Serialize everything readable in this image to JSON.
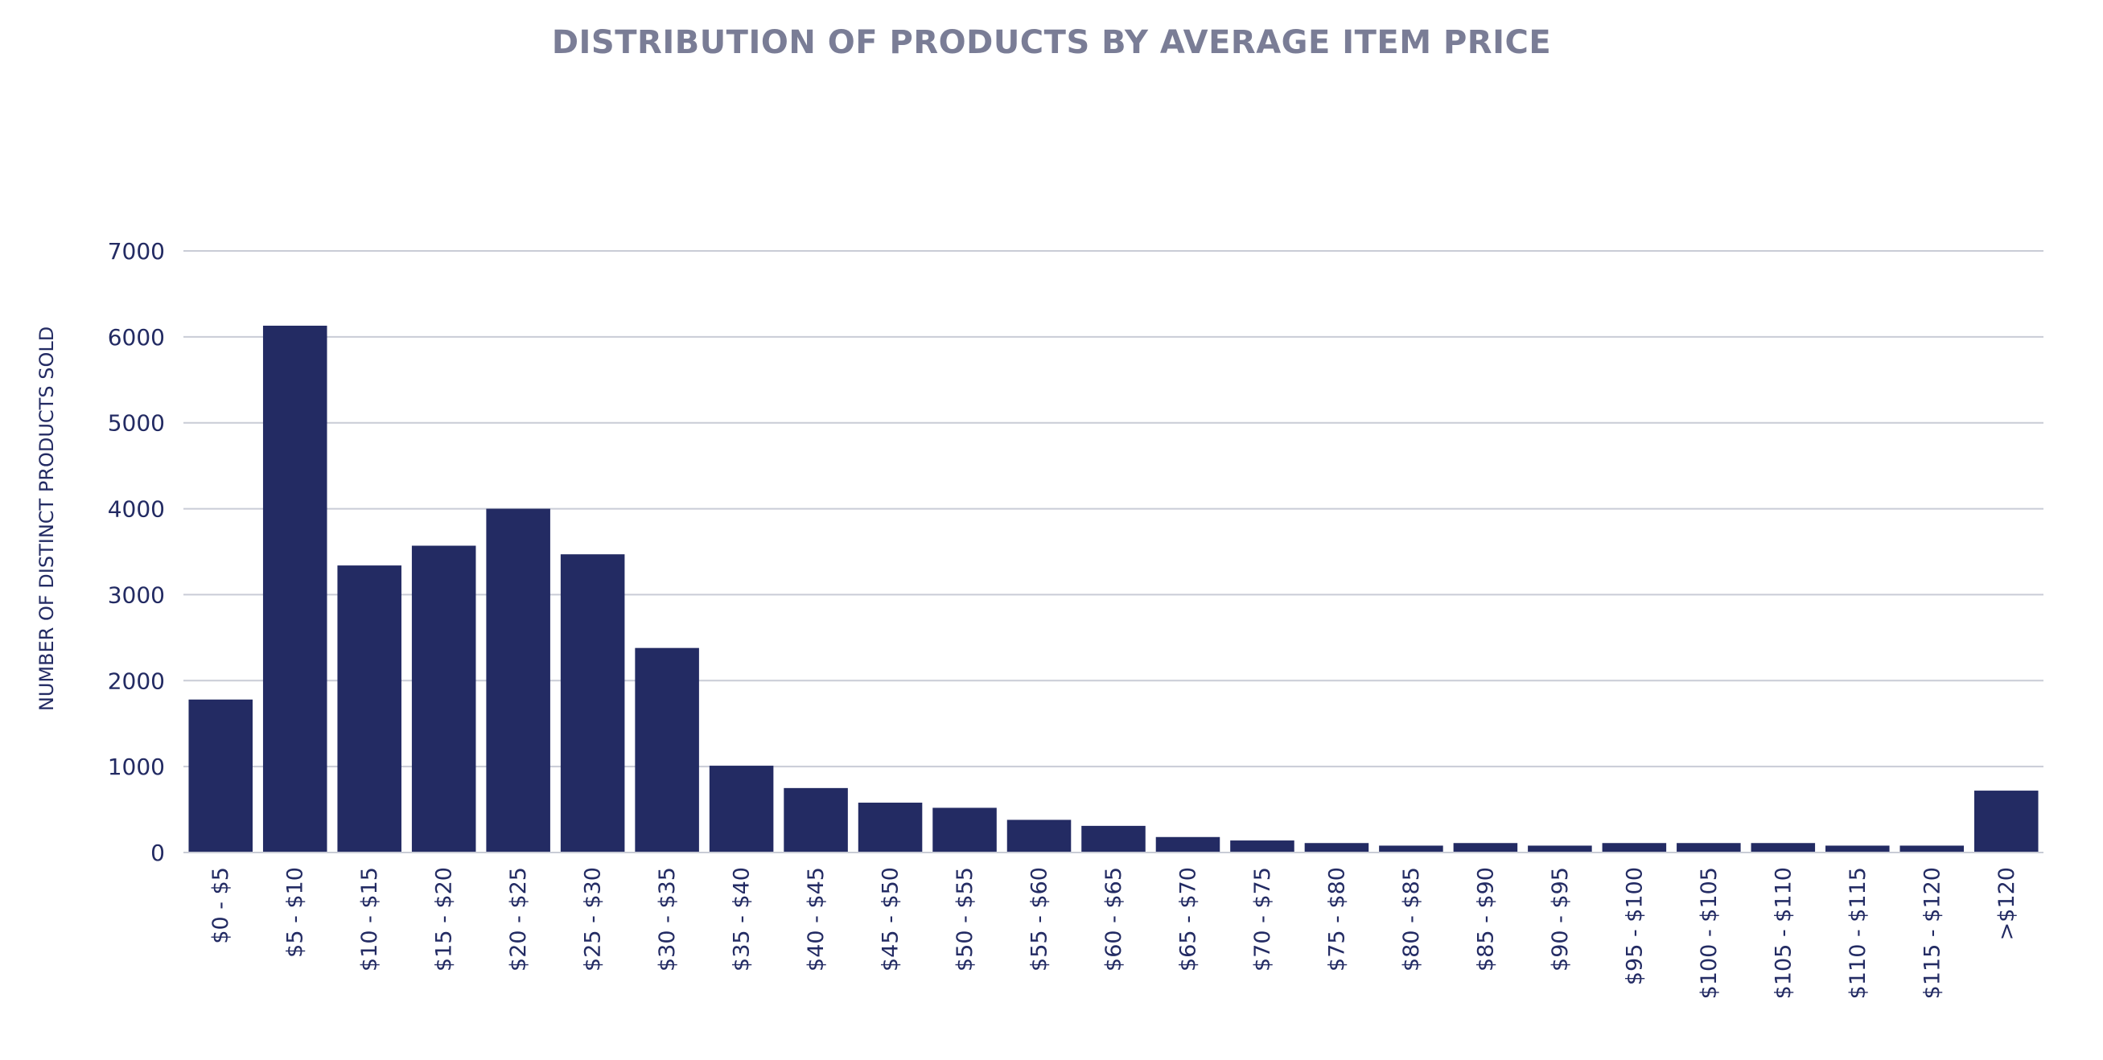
{
  "chart_data": {
    "type": "bar",
    "title": "DISTRIBUTION OF PRODUCTS BY AVERAGE ITEM PRICE",
    "xlabel": "",
    "ylabel": "NUMBER OF DISTINCT PRODUCTS SOLD",
    "ylim": [
      0,
      7000
    ],
    "yticks": [
      0,
      1000,
      2000,
      3000,
      4000,
      5000,
      6000,
      7000
    ],
    "grid": true,
    "legend": "none",
    "colors": {
      "bar": "#232b63",
      "title": "#7a7d96",
      "axis_text": "#232b63",
      "grid": "#c9ccd6"
    },
    "categories": [
      "$0 - $5",
      "$5 - $10",
      "$10 - $15",
      "$15 - $20",
      "$20 - $25",
      "$25 - $30",
      "$30 - $35",
      "$35 - $40",
      "$40 - $45",
      "$45 - $50",
      "$50 - $55",
      "$55 - $60",
      "$60 - $65",
      "$65 - $70",
      "$70 - $75",
      "$75 - $80",
      "$80 - $85",
      "$85 - $90",
      "$90 - $95",
      "$95 - $100",
      "$100 - $105",
      "$105 - $110",
      "$110 - $115",
      "$115 - $120",
      ">$120"
    ],
    "values": [
      1780,
      6130,
      3340,
      3570,
      4000,
      3470,
      2380,
      1010,
      750,
      580,
      520,
      380,
      310,
      180,
      140,
      110,
      80,
      110,
      80,
      110,
      110,
      110,
      80,
      80,
      720
    ]
  }
}
